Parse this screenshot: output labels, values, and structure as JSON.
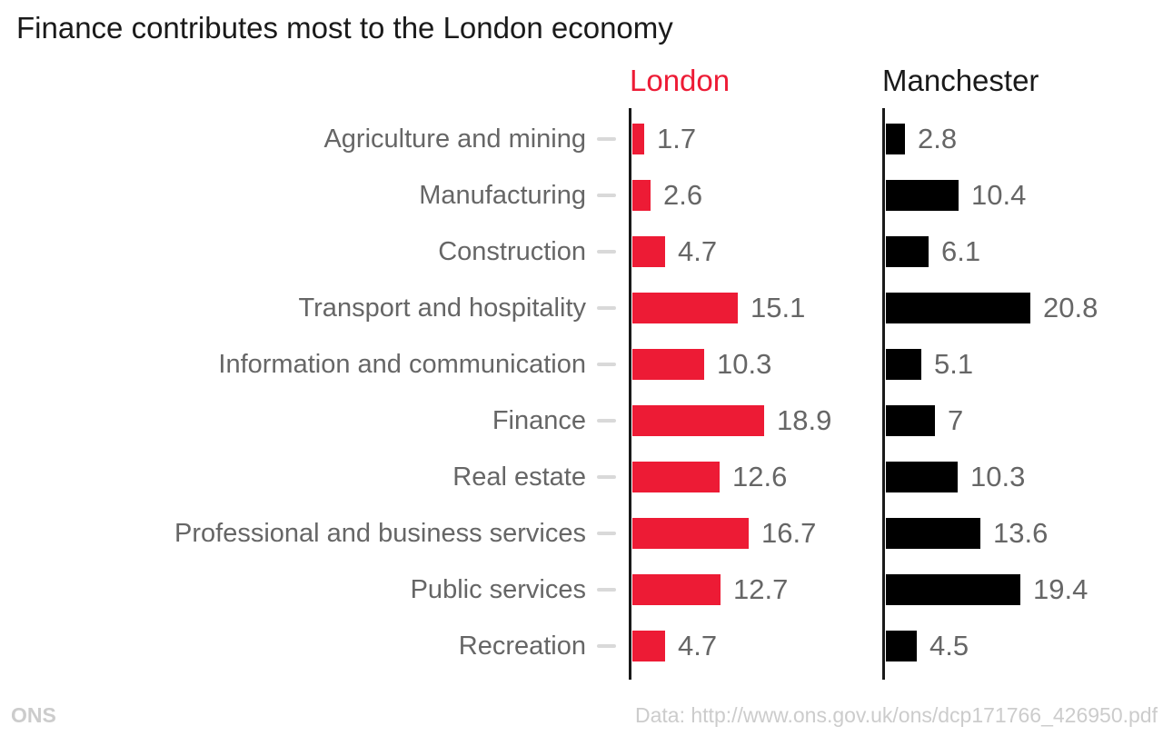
{
  "title": "Finance contributes most to the London economy",
  "footer": {
    "source": "ONS",
    "data_note": "Data: http://www.ons.gov.uk/ons/dcp171766_426950.pdf"
  },
  "colors": {
    "london_red": "#ed1b35",
    "manchester_black": "#000000",
    "label_gray": "#666666",
    "tick_gray": "#d9d9d9",
    "axis_black": "#1a1a1a",
    "footer_gray": "#cccccc"
  },
  "chart_data": {
    "type": "bar",
    "orientation": "horizontal",
    "title": "Finance contributes most to the London economy",
    "categories": [
      "Agriculture and mining",
      "Manufacturing",
      "Construction",
      "Transport and hospitality",
      "Information and communication",
      "Finance",
      "Real estate",
      "Professional and business services",
      "Public services",
      "Recreation"
    ],
    "series": [
      {
        "name": "London",
        "color": "#ed1b35",
        "values": [
          1.7,
          2.6,
          4.7,
          15.1,
          10.3,
          18.9,
          12.6,
          16.7,
          12.7,
          4.7
        ]
      },
      {
        "name": "Manchester",
        "color": "#000000",
        "values": [
          2.8,
          10.4,
          6.1,
          20.8,
          5.1,
          7,
          10.3,
          13.6,
          19.4,
          4.5
        ]
      }
    ],
    "value_labels": true,
    "xlim": [
      0,
      21
    ],
    "grid": false,
    "legend_position": "column-headers"
  }
}
